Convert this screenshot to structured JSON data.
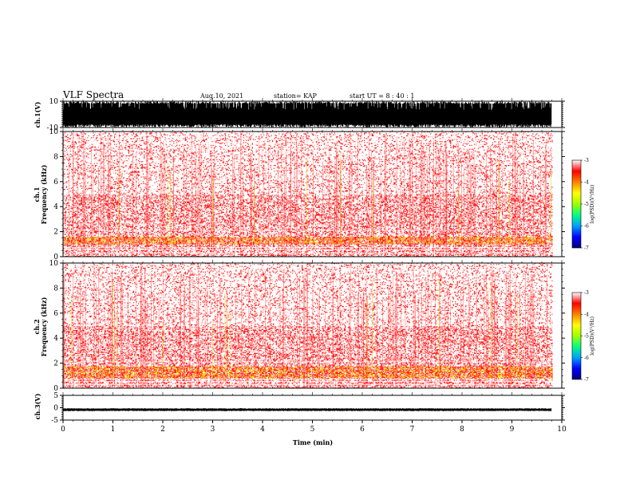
{
  "header": {
    "title": "VLF Spectra",
    "date": "Aug.10, 2021",
    "station": "station= KAP",
    "start": "start  UT  =   8 : 40 : 1"
  },
  "chart_data": [
    {
      "type": "line",
      "panel": "ch1-voltage",
      "ylabel": "ch.1(V)",
      "ylim": [
        -10,
        10
      ],
      "yticks": [
        "10",
        "-10"
      ],
      "xlim": [
        0,
        10
      ],
      "description_values": {
        "signal_min": -10,
        "signal_max": 10,
        "active_until_min": 9.8
      },
      "color": "#000000"
    },
    {
      "type": "heatmap",
      "panel": "ch1-spectrogram",
      "ylabel_top": "ch.1",
      "ylabel": "Frequency (kHz)",
      "ylim": [
        0,
        10
      ],
      "yticks": [
        "0",
        "2",
        "4",
        "6",
        "8",
        "10"
      ],
      "xlim": [
        0,
        10
      ],
      "data_end_min": 9.8,
      "colorbar": {
        "label": "log(PSD)(V²/Hz)",
        "range": [
          -7,
          -3
        ],
        "ticks": [
          "-3",
          "-4",
          "-5",
          "-6",
          "-7"
        ],
        "colors": [
          "#000080",
          "#0000ff",
          "#00a0ff",
          "#00ff80",
          "#a0ff00",
          "#ffff00",
          "#ff8000",
          "#ff0000",
          "#ffffff"
        ]
      },
      "bands": [
        {
          "freq_range_khz": [
            1.0,
            1.6
          ],
          "intensity": "high"
        },
        {
          "freq_range_khz": [
            0.0,
            1.0
          ],
          "intensity": "medium"
        },
        {
          "freq_range_khz": [
            1.6,
            5.0
          ],
          "intensity": "medium"
        },
        {
          "freq_range_khz": [
            5.0,
            10.0
          ],
          "intensity": "low"
        }
      ]
    },
    {
      "type": "heatmap",
      "panel": "ch2-spectrogram",
      "ylabel_top": "ch.2",
      "ylabel": "Frequency (kHz)",
      "ylim": [
        0,
        10
      ],
      "yticks": [
        "0",
        "2",
        "4",
        "6",
        "8",
        "10"
      ],
      "xlim": [
        0,
        10
      ],
      "data_end_min": 9.8,
      "colorbar": {
        "label": "log(PSD)(V²/Hz)",
        "range": [
          -7,
          -3
        ],
        "ticks": [
          "-3",
          "-4",
          "-5",
          "-6",
          "-7"
        ],
        "colors": [
          "#000080",
          "#0000ff",
          "#00a0ff",
          "#00ff80",
          "#a0ff00",
          "#ffff00",
          "#ff8000",
          "#ff0000",
          "#ffffff"
        ]
      },
      "bands": [
        {
          "freq_range_khz": [
            0.8,
            1.8
          ],
          "intensity": "high"
        },
        {
          "freq_range_khz": [
            0.0,
            0.8
          ],
          "intensity": "medium"
        },
        {
          "freq_range_khz": [
            1.8,
            5.0
          ],
          "intensity": "medium"
        },
        {
          "freq_range_khz": [
            5.0,
            10.0
          ],
          "intensity": "low"
        }
      ]
    },
    {
      "type": "line",
      "panel": "ch3-voltage",
      "ylabel": "ch.3(V)",
      "ylim": [
        -5,
        5
      ],
      "yticks": [
        "5",
        "0",
        "-5"
      ],
      "xlim": [
        0,
        10
      ],
      "xticks": [
        "0",
        "1",
        "2",
        "3",
        "4",
        "5",
        "6",
        "7",
        "8",
        "9",
        "10"
      ],
      "xlabel": "Time (min)",
      "description_values": {
        "signal_level": -0.8,
        "signal_amplitude": 0.6,
        "active_until_min": 9.8
      },
      "color": "#000000"
    }
  ]
}
